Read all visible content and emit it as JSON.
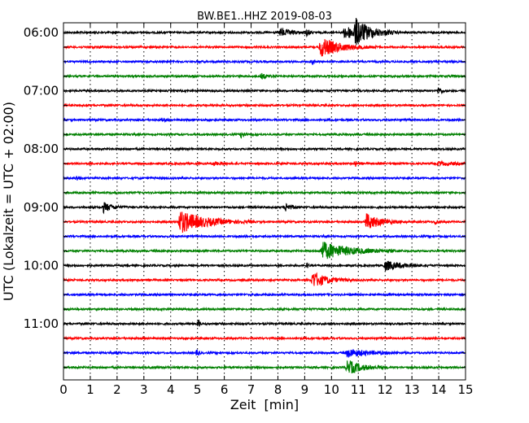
{
  "chart_data": {
    "type": "line",
    "title": "BW.BE1..HHZ 2019-08-03",
    "xlabel": "Zeit  [min]",
    "ylabel": "UTC (Lokalzeit = UTC + 02:00)",
    "xlim": [
      0,
      15
    ],
    "x_ticks": [
      "0",
      "1",
      "2",
      "3",
      "4",
      "5",
      "6",
      "7",
      "8",
      "9",
      "10",
      "11",
      "12",
      "13",
      "14",
      "15"
    ],
    "hour_labels": [
      "06:00",
      "07:00",
      "08:00",
      "09:00",
      "10:00",
      "11:00"
    ],
    "grid": "vertical dotted",
    "color_cycle": [
      "#000000",
      "#ff0000",
      "#0000ff",
      "#008000"
    ],
    "series": [
      {
        "start": "06:00",
        "color": "#000000",
        "events": [
          {
            "t": 8.1,
            "amp": 5,
            "dur": 0.35
          },
          {
            "t": 9.1,
            "amp": 5,
            "dur": 0.08
          },
          {
            "t": 10.5,
            "amp": 8,
            "dur": 0.7
          },
          {
            "t": 10.9,
            "amp": 13,
            "dur": 0.5
          }
        ]
      },
      {
        "start": "06:15",
        "color": "#ff0000",
        "events": [
          {
            "t": 9.6,
            "amp": 12,
            "dur": 0.7
          },
          {
            "t": 1.4,
            "amp": 2,
            "dur": 0.05
          }
        ]
      },
      {
        "start": "06:30",
        "color": "#0000ff",
        "events": [
          {
            "t": 9.3,
            "amp": 5,
            "dur": 0.05
          }
        ]
      },
      {
        "start": "06:45",
        "color": "#008000",
        "events": [
          {
            "t": 7.4,
            "amp": 3,
            "dur": 0.2
          }
        ]
      },
      {
        "start": "07:00",
        "color": "#000000",
        "events": [
          {
            "t": 14.0,
            "amp": 5,
            "dur": 0.1
          }
        ]
      },
      {
        "start": "07:15",
        "color": "#ff0000",
        "events": []
      },
      {
        "start": "07:30",
        "color": "#0000ff",
        "events": [
          {
            "t": 3.7,
            "amp": 2,
            "dur": 0.1
          }
        ]
      },
      {
        "start": "07:45",
        "color": "#008000",
        "events": [
          {
            "t": 6.65,
            "amp": 5,
            "dur": 0.1
          }
        ]
      },
      {
        "start": "08:00",
        "color": "#000000",
        "events": []
      },
      {
        "start": "08:15",
        "color": "#ff0000",
        "events": [
          {
            "t": 5.6,
            "amp": 2,
            "dur": 0.3
          },
          {
            "t": 10.9,
            "amp": 3,
            "dur": 0.05
          },
          {
            "t": 14.0,
            "amp": 2,
            "dur": 0.6
          }
        ]
      },
      {
        "start": "08:30",
        "color": "#0000ff",
        "events": [
          {
            "t": 0.5,
            "amp": 3,
            "dur": 0.1
          }
        ]
      },
      {
        "start": "08:45",
        "color": "#008000",
        "events": []
      },
      {
        "start": "09:00",
        "color": "#000000",
        "events": [
          {
            "t": 1.5,
            "amp": 6,
            "dur": 0.3
          },
          {
            "t": 8.3,
            "amp": 5,
            "dur": 0.2
          }
        ]
      },
      {
        "start": "09:15",
        "color": "#ff0000",
        "events": [
          {
            "t": 4.35,
            "amp": 14,
            "dur": 0.9
          },
          {
            "t": 11.3,
            "amp": 10,
            "dur": 0.5
          },
          {
            "t": 13.9,
            "amp": 5,
            "dur": 0.05
          }
        ]
      },
      {
        "start": "09:30",
        "color": "#0000ff",
        "events": []
      },
      {
        "start": "09:45",
        "color": "#008000",
        "events": [
          {
            "t": 9.65,
            "amp": 11,
            "dur": 1.0
          }
        ]
      },
      {
        "start": "10:00",
        "color": "#000000",
        "events": [
          {
            "t": 9.1,
            "amp": 3,
            "dur": 0.05
          },
          {
            "t": 12.0,
            "amp": 6,
            "dur": 0.6
          }
        ]
      },
      {
        "start": "10:15",
        "color": "#ff0000",
        "events": [
          {
            "t": 9.3,
            "amp": 10,
            "dur": 0.5
          }
        ]
      },
      {
        "start": "10:30",
        "color": "#0000ff",
        "events": []
      },
      {
        "start": "10:45",
        "color": "#008000",
        "events": []
      },
      {
        "start": "11:00",
        "color": "#000000",
        "events": [
          {
            "t": 5.05,
            "amp": 5,
            "dur": 0.05
          }
        ]
      },
      {
        "start": "11:15",
        "color": "#ff0000",
        "events": []
      },
      {
        "start": "11:30",
        "color": "#0000ff",
        "events": [
          {
            "t": 5.0,
            "amp": 5,
            "dur": 0.05
          },
          {
            "t": 10.6,
            "amp": 5,
            "dur": 0.8
          },
          {
            "t": 2.0,
            "amp": 2,
            "dur": 0.05
          }
        ]
      },
      {
        "start": "11:45",
        "color": "#008000",
        "events": [
          {
            "t": 10.6,
            "amp": 9,
            "dur": 0.5
          }
        ]
      }
    ]
  }
}
